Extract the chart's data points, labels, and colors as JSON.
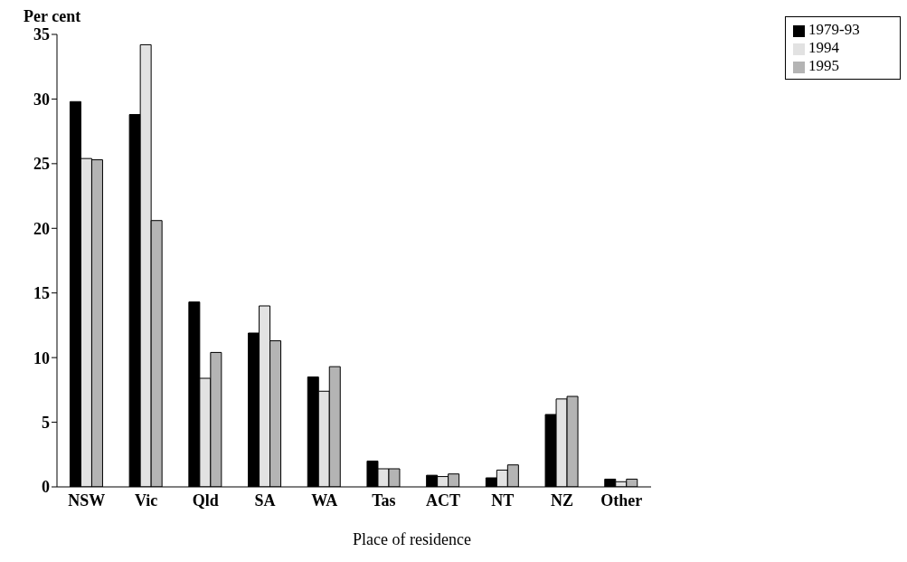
{
  "chart_data": {
    "type": "bar",
    "ylabel": "Per cent",
    "xlabel": "Place of residence",
    "categories": [
      "NSW",
      "Vic",
      "Qld",
      "SA",
      "WA",
      "Tas",
      "ACT",
      "NT",
      "NZ",
      "Other"
    ],
    "series": [
      {
        "name": "1979-93",
        "color": "#000000",
        "values": [
          29.8,
          28.8,
          14.3,
          11.9,
          8.5,
          2.0,
          0.9,
          0.7,
          5.6,
          0.6
        ]
      },
      {
        "name": "1994",
        "color": "#e2e2e2",
        "values": [
          25.4,
          34.2,
          8.4,
          14.0,
          7.4,
          1.4,
          0.8,
          1.3,
          6.8,
          0.4
        ]
      },
      {
        "name": "1995",
        "color": "#b4b4b4",
        "values": [
          25.3,
          20.6,
          10.4,
          11.3,
          9.3,
          1.4,
          1.0,
          1.7,
          7.0,
          0.6
        ]
      }
    ],
    "ylim": [
      0,
      35
    ],
    "yticks": [
      0,
      5,
      10,
      15,
      20,
      25,
      30,
      35
    ],
    "grid": false,
    "legend": "top right"
  }
}
